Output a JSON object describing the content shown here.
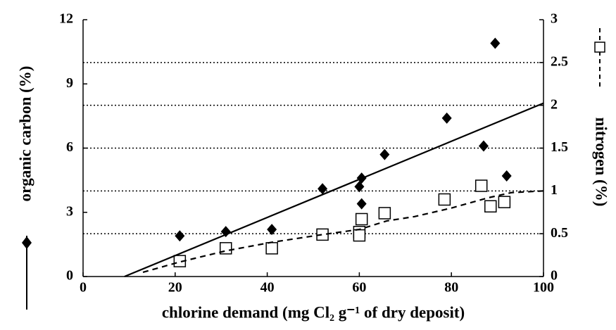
{
  "chart_data": {
    "type": "scatter",
    "xlabel": "chlorine demand (mg Cl₂ g⁻¹ of dry deposit)",
    "ylabel": "organic carbon (%)",
    "y2label": "nitrogen (%)",
    "xlim": [
      0,
      100
    ],
    "xticks": [
      0,
      20,
      40,
      60,
      80,
      100
    ],
    "ylim": [
      0,
      12
    ],
    "yticks": [
      0,
      3,
      6,
      9,
      12
    ],
    "y2lim": [
      0,
      3
    ],
    "y2ticks": [
      0,
      0.5,
      1,
      1.5,
      2,
      2.5,
      3
    ],
    "grid": true,
    "series": [
      {
        "marker": "diamond",
        "color": "#000000",
        "axis": "y",
        "x": [
          21,
          31,
          41,
          52,
          60,
          60.5,
          60.5,
          65.5,
          79,
          87,
          89.5,
          92
        ],
        "values": [
          1.9,
          2.1,
          2.2,
          4.1,
          4.2,
          4.6,
          3.4,
          5.7,
          7.4,
          6.1,
          10.9,
          4.7
        ]
      },
      {
        "marker": "square",
        "color": "#000000",
        "axis": "y2",
        "x": [
          21,
          31,
          41,
          52,
          60,
          60,
          60.5,
          65.5,
          78.5,
          86.5,
          88.5,
          91.5
        ],
        "values": [
          0.18,
          0.33,
          0.33,
          0.49,
          0.52,
          0.48,
          0.67,
          0.74,
          0.9,
          1.06,
          0.82,
          0.87
        ]
      },
      {
        "line": "solid",
        "color": "#000000",
        "axis": "y",
        "x": [
          9,
          100
        ],
        "values": [
          0,
          8.1
        ]
      },
      {
        "line": "dashed",
        "color": "#000000",
        "axis": "y2",
        "x": [
          13,
          21,
          31,
          41,
          52,
          60,
          66,
          72,
          80,
          88,
          93,
          100
        ],
        "values": [
          0.05,
          0.17,
          0.3,
          0.4,
          0.49,
          0.55,
          0.65,
          0.7,
          0.8,
          0.92,
          0.98,
          1.0
        ]
      }
    ]
  }
}
